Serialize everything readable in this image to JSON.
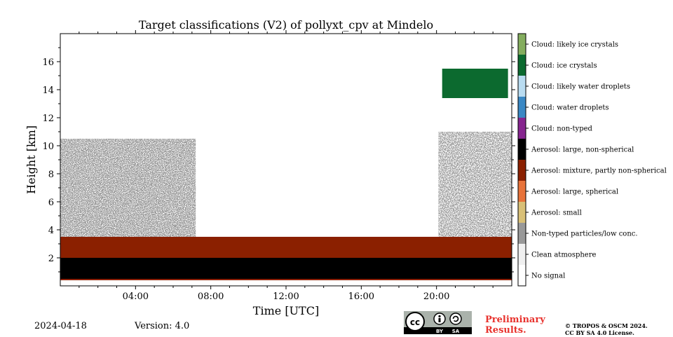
{
  "footer": {
    "date": "2024-04-18",
    "version": "Version: 4.0",
    "preliminary_line1": "Preliminary",
    "preliminary_line2": "Results.",
    "copyright_line1": "© TROPOS & OSCM 2024.",
    "copyright_line2": "CC BY SA 4.0 License.",
    "badge_cc": "cc",
    "badge_by": "BY",
    "badge_sa": "SA"
  },
  "chart_data": {
    "type": "heatmap",
    "title": "Target classifications (V2) of pollyxt_cpv at Mindelo",
    "xlabel": "Time [UTC]",
    "ylabel": "Height [km]",
    "x_unit": "hours UTC",
    "xlim": [
      0,
      24
    ],
    "ylim": [
      0,
      18
    ],
    "x_ticks": [
      4,
      8,
      12,
      16,
      20
    ],
    "x_tick_labels": [
      "04:00",
      "08:00",
      "12:00",
      "16:00",
      "20:00"
    ],
    "y_ticks": [
      2,
      4,
      6,
      8,
      10,
      12,
      14,
      16
    ],
    "y_tick_labels": [
      "2",
      "4",
      "6",
      "8",
      "10",
      "12",
      "14",
      "16"
    ],
    "colorbar_position": "right",
    "classes": [
      {
        "label": "No signal",
        "color": "#ffffff"
      },
      {
        "label": "Clean atmosphere",
        "color": "#f0f0f0"
      },
      {
        "label": "Non-typed particles/low conc.",
        "color": "#999999"
      },
      {
        "label": "Aerosol: small",
        "color": "#d9c077"
      },
      {
        "label": "Aerosol: large, spherical",
        "color": "#e8733a"
      },
      {
        "label": "Aerosol: mixture, partly non-spherical",
        "color": "#8b2000"
      },
      {
        "label": "Aerosol: large, non-spherical",
        "color": "#000000"
      },
      {
        "label": "Cloud: non-typed",
        "color": "#86258f"
      },
      {
        "label": "Cloud: water droplets",
        "color": "#3a88c4"
      },
      {
        "label": "Cloud: likely water droplets",
        "color": "#b9dcf1"
      },
      {
        "label": "Cloud: ice crystals",
        "color": "#0c6a2f"
      },
      {
        "label": "Cloud: likely ice crystals",
        "color": "#84ad5e"
      }
    ],
    "regions": [
      {
        "class": "Non-typed particles/low conc.",
        "from_hour": 0,
        "to_hour": 7.2,
        "bottom_km": 3.5,
        "top_km": 10.5
      },
      {
        "class": "Non-typed particles/low conc.",
        "from_hour": 20.1,
        "to_hour": 24,
        "bottom_km": 3.5,
        "top_km": 11
      },
      {
        "class": "Aerosol: mixture, partly non-spherical",
        "from_hour": 0,
        "to_hour": 24,
        "bottom_km": 0.4,
        "top_km": 3.5
      },
      {
        "class": "Aerosol: large, non-spherical",
        "from_hour": 0,
        "to_hour": 24,
        "bottom_km": 0.5,
        "top_km": 2
      },
      {
        "class": "Cloud: ice crystals",
        "from_hour": 20.3,
        "to_hour": 23.8,
        "bottom_km": 13.4,
        "top_km": 15.5
      }
    ]
  }
}
